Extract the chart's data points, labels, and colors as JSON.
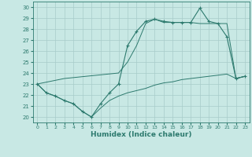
{
  "xlabel": "Humidex (Indice chaleur)",
  "xlim": [
    -0.5,
    23.5
  ],
  "ylim": [
    19.5,
    30.5
  ],
  "xticks": [
    0,
    1,
    2,
    3,
    4,
    5,
    6,
    7,
    8,
    9,
    10,
    11,
    12,
    13,
    14,
    15,
    16,
    17,
    18,
    19,
    20,
    21,
    22,
    23
  ],
  "yticks": [
    20,
    21,
    22,
    23,
    24,
    25,
    26,
    27,
    28,
    29,
    30
  ],
  "background_color": "#c8e8e4",
  "grid_color": "#a8ccca",
  "line_color": "#2d7a6e",
  "line1_x": [
    0,
    1,
    2,
    3,
    4,
    5,
    6,
    7,
    8,
    9,
    10,
    11,
    12,
    13,
    14,
    15,
    16,
    17,
    18,
    19,
    20,
    21,
    22,
    23
  ],
  "line1_y": [
    23.0,
    22.2,
    21.9,
    21.5,
    21.2,
    20.5,
    20.0,
    21.2,
    22.2,
    23.0,
    26.5,
    27.8,
    28.7,
    28.9,
    28.7,
    28.6,
    28.6,
    28.6,
    29.9,
    28.7,
    28.5,
    27.3,
    23.5,
    23.7
  ],
  "line2_x": [
    0,
    3,
    9,
    10,
    11,
    12,
    13,
    14,
    15,
    16,
    17,
    18,
    19,
    20,
    21,
    22,
    23
  ],
  "line2_y": [
    23.0,
    23.5,
    24.0,
    25.0,
    26.5,
    28.5,
    28.9,
    28.6,
    28.6,
    28.6,
    28.6,
    28.5,
    28.5,
    28.5,
    28.5,
    23.5,
    23.7
  ],
  "line3_x": [
    0,
    1,
    2,
    3,
    4,
    5,
    6,
    7,
    8,
    9,
    10,
    11,
    12,
    13,
    14,
    15,
    16,
    17,
    18,
    19,
    20,
    21,
    22,
    23
  ],
  "line3_y": [
    23.0,
    22.2,
    21.9,
    21.5,
    21.2,
    20.5,
    20.0,
    20.8,
    21.5,
    21.9,
    22.2,
    22.4,
    22.6,
    22.9,
    23.1,
    23.2,
    23.4,
    23.5,
    23.6,
    23.7,
    23.8,
    23.9,
    23.5,
    23.7
  ]
}
